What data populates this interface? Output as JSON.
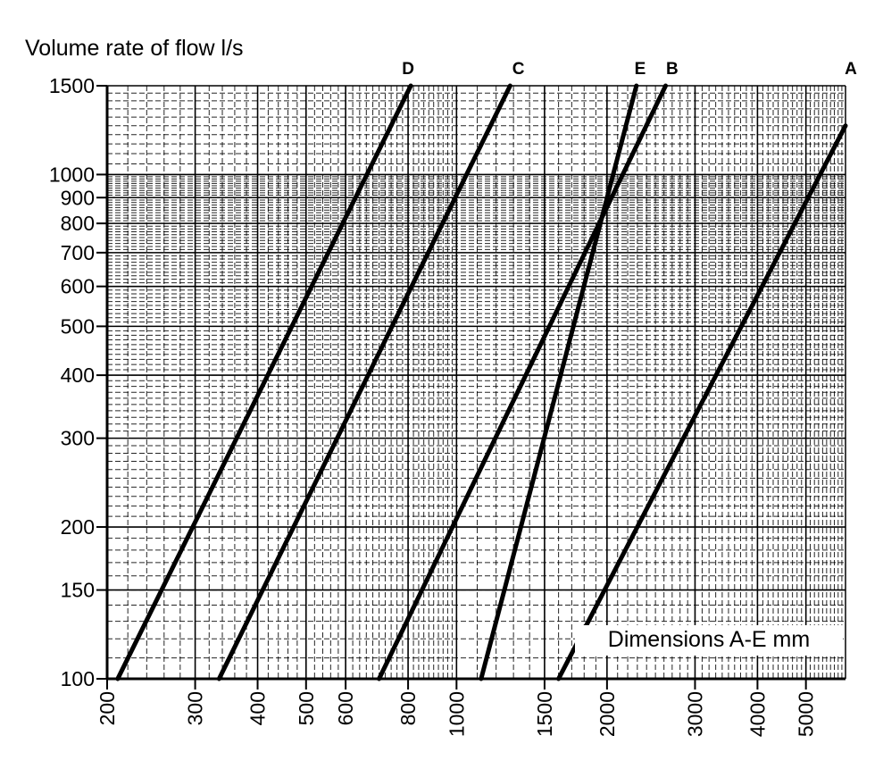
{
  "chart_data": {
    "type": "line",
    "title": "",
    "ylabel": "Volume rate of flow l/s",
    "xlabel": "Dimensions A-E mm",
    "x_scale": "log",
    "y_scale": "log",
    "xlim": [
      200,
      6000
    ],
    "ylim": [
      100,
      1500
    ],
    "grid": true,
    "x_ticks": [
      200,
      300,
      400,
      500,
      600,
      800,
      1000,
      1500,
      2000,
      3000,
      4000,
      5000
    ],
    "x_tick_labels": [
      "200",
      "300",
      "400",
      "500",
      "600",
      "800",
      "1000",
      "1500",
      "2000",
      "3000",
      "4000",
      "5000"
    ],
    "y_ticks": [
      100,
      150,
      200,
      300,
      400,
      500,
      600,
      700,
      800,
      900,
      1000,
      1500
    ],
    "y_tick_labels": [
      "100",
      "150",
      "200",
      "300",
      "400",
      "500",
      "600",
      "700",
      "800",
      "900",
      "1000",
      "1500"
    ],
    "series": [
      {
        "name": "D",
        "points": [
          [
            210,
            100
          ],
          [
            810,
            1500
          ]
        ]
      },
      {
        "name": "C",
        "points": [
          [
            335,
            100
          ],
          [
            1280,
            1500
          ]
        ]
      },
      {
        "name": "E",
        "points": [
          [
            1120,
            100
          ],
          [
            2290,
            1500
          ]
        ]
      },
      {
        "name": "B",
        "points": [
          [
            700,
            100
          ],
          [
            2620,
            1500
          ]
        ]
      },
      {
        "name": "A",
        "points": [
          [
            1600,
            100
          ],
          [
            6000,
            1250
          ]
        ]
      }
    ],
    "series_labels": [
      {
        "text": "D",
        "x": 800
      },
      {
        "text": "C",
        "x": 1330
      },
      {
        "text": "E",
        "x": 2330
      },
      {
        "text": "B",
        "x": 2700
      },
      {
        "text": "A",
        "x": 6150
      }
    ]
  }
}
